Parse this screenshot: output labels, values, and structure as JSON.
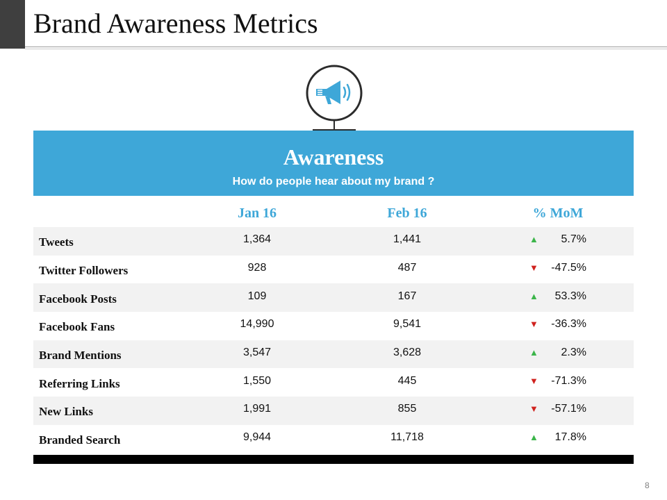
{
  "slide": {
    "title": "Brand Awareness Metrics",
    "page_number": "8"
  },
  "icon": {
    "name": "megaphone-icon"
  },
  "banner": {
    "title": "Awareness",
    "subtitle": "How do people hear about my brand ?"
  },
  "table": {
    "headers": [
      "",
      "Jan 16",
      "Feb 16",
      "% MoM"
    ],
    "rows": [
      {
        "label": "Tweets",
        "jan": "1,364",
        "feb": "1,441",
        "trend": "up",
        "mom": "5.7%"
      },
      {
        "label": "Twitter  Followers",
        "jan": "928",
        "feb": "487",
        "trend": "down",
        "mom": "-47.5%"
      },
      {
        "label": "Facebook Posts",
        "jan": "109",
        "feb": "167",
        "trend": "up",
        "mom": "53.3%"
      },
      {
        "label": "Facebook Fans",
        "jan": "14,990",
        "feb": "9,541",
        "trend": "down",
        "mom": "-36.3%"
      },
      {
        "label": "Brand Mentions",
        "jan": "3,547",
        "feb": "3,628",
        "trend": "up",
        "mom": "2.3%"
      },
      {
        "label": "Referring  Links",
        "jan": "1,550",
        "feb": "445",
        "trend": "down",
        "mom": "-71.3%"
      },
      {
        "label": "New Links",
        "jan": "1,991",
        "feb": "855",
        "trend": "down",
        "mom": "-57.1%"
      },
      {
        "label": "Branded Search",
        "jan": "9,944",
        "feb": "11,718",
        "trend": "up",
        "mom": "17.8%"
      }
    ]
  },
  "colors": {
    "accent": "#3ea7d8",
    "up": "#3cb54a",
    "down": "#d0231f"
  }
}
